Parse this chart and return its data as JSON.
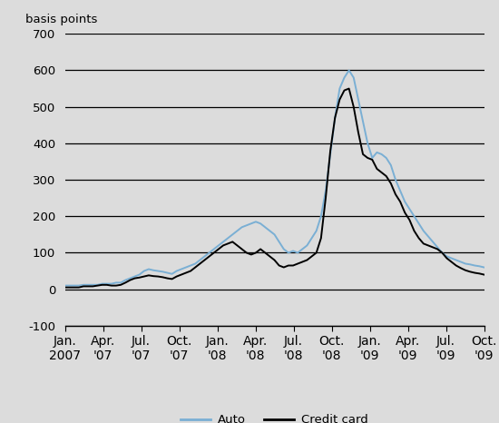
{
  "title_ylabel": "basis points",
  "ylim": [
    -100,
    700
  ],
  "yticks": [
    -100,
    0,
    100,
    200,
    300,
    400,
    500,
    600,
    700
  ],
  "background_color": "#dcdcdc",
  "grid_color": "#000000",
  "auto_color": "#7aafd4",
  "credit_color": "#000000",
  "legend_labels": [
    "Auto",
    "Credit card"
  ],
  "x_tick_labels": [
    "Jan.\n2007",
    "Apr.\n'07",
    "Jul.\n'07",
    "Oct.\n'07",
    "Jan.\n'08",
    "Apr.\n'08",
    "Jul.\n'08",
    "Oct.\n'08",
    "Jan.\n'09",
    "Apr.\n'09",
    "Jul.\n'09",
    "Oct.\n'09"
  ],
  "auto_data": [
    10,
    10,
    10,
    10,
    12,
    12,
    12,
    12,
    15,
    15,
    15,
    18,
    18,
    25,
    30,
    35,
    40,
    50,
    55,
    52,
    50,
    48,
    45,
    42,
    50,
    55,
    60,
    65,
    70,
    80,
    90,
    100,
    110,
    120,
    130,
    140,
    150,
    160,
    170,
    175,
    180,
    185,
    180,
    170,
    160,
    150,
    130,
    110,
    100,
    105,
    100,
    110,
    120,
    140,
    160,
    200,
    270,
    370,
    470,
    550,
    580,
    600,
    580,
    520,
    460,
    400,
    360,
    375,
    370,
    360,
    340,
    300,
    270,
    240,
    220,
    200,
    180,
    160,
    145,
    130,
    115,
    100,
    90,
    85,
    80,
    75,
    70,
    68,
    65,
    63,
    60
  ],
  "credit_data": [
    5,
    5,
    5,
    5,
    8,
    8,
    8,
    10,
    12,
    12,
    10,
    10,
    12,
    18,
    25,
    30,
    32,
    35,
    38,
    36,
    35,
    33,
    30,
    28,
    35,
    40,
    45,
    50,
    60,
    70,
    80,
    90,
    100,
    110,
    120,
    125,
    130,
    120,
    110,
    100,
    95,
    100,
    110,
    100,
    90,
    80,
    65,
    60,
    65,
    65,
    70,
    75,
    80,
    90,
    100,
    140,
    250,
    380,
    470,
    520,
    545,
    550,
    500,
    430,
    370,
    360,
    355,
    330,
    320,
    310,
    290,
    260,
    240,
    210,
    190,
    160,
    140,
    125,
    120,
    115,
    110,
    100,
    85,
    75,
    65,
    58,
    52,
    48,
    45,
    43,
    40
  ],
  "figsize": [
    5.5,
    4.66
  ],
  "dpi": 100
}
